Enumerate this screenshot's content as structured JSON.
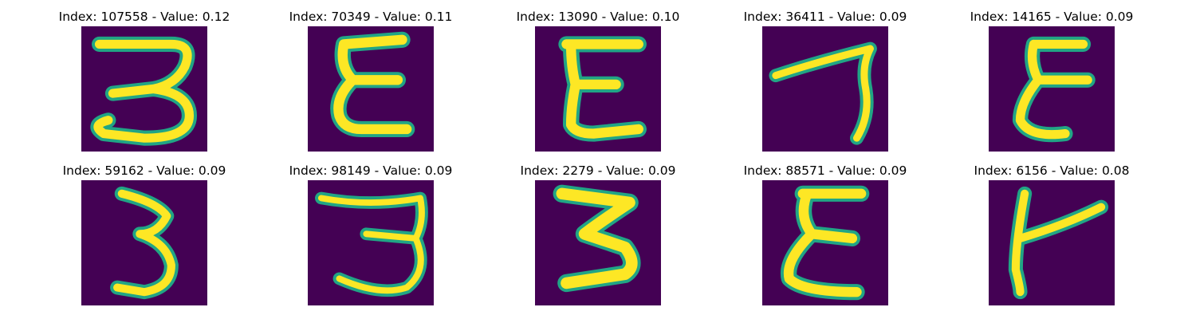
{
  "figure": {
    "colors": {
      "background": "#440154",
      "stroke_core": "#fde725",
      "stroke_edge": "#21a585"
    },
    "panels": [
      {
        "title": "Index: 107558 - Value: 0.12",
        "glyph": "3"
      },
      {
        "title": "Index: 70349 - Value: 0.11",
        "glyph": "E"
      },
      {
        "title": "Index: 13090 - Value: 0.10",
        "glyph": "E"
      },
      {
        "title": "Index: 36411 - Value: 0.09",
        "glyph": "7"
      },
      {
        "title": "Index: 14165 - Value: 0.09",
        "glyph": "E"
      },
      {
        "title": "Index: 59162 - Value: 0.09",
        "glyph": "3"
      },
      {
        "title": "Index: 98149 - Value: 0.09",
        "glyph": "3"
      },
      {
        "title": "Index: 2279 - Value: 0.09",
        "glyph": "3"
      },
      {
        "title": "Index: 88571 - Value: 0.09",
        "glyph": "E"
      },
      {
        "title": "Index: 6156 - Value: 0.08",
        "glyph": "Y"
      }
    ]
  }
}
